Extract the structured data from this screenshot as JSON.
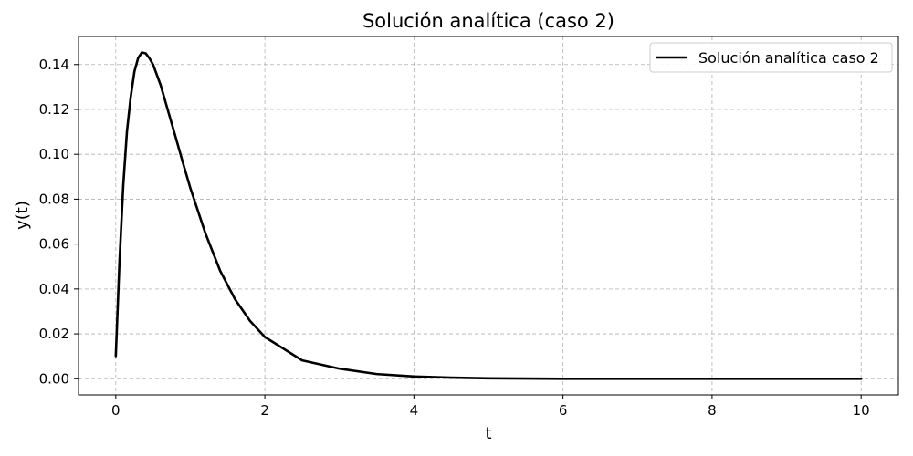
{
  "chart_data": {
    "type": "line",
    "title": "Solución analítica (caso 2)",
    "xlabel": "t",
    "ylabel": "y(t)",
    "xlim": [
      -0.5,
      10.5
    ],
    "ylim": [
      -0.0072,
      0.1525
    ],
    "xticks": [
      0,
      2,
      4,
      6,
      8,
      10
    ],
    "xtick_labels": [
      "0",
      "2",
      "4",
      "6",
      "8",
      "10"
    ],
    "yticks": [
      0.0,
      0.02,
      0.04,
      0.06,
      0.08,
      0.1,
      0.12,
      0.14
    ],
    "ytick_labels": [
      "0.00",
      "0.02",
      "0.04",
      "0.06",
      "0.08",
      "0.10",
      "0.12",
      "0.14"
    ],
    "grid": true,
    "legend_position": "top-right",
    "series": [
      {
        "name": "Solución analítica caso 2",
        "color": "#000000",
        "x": [
          0,
          0.05,
          0.1,
          0.15,
          0.2,
          0.25,
          0.3,
          0.35,
          0.4,
          0.45,
          0.5,
          0.6,
          0.7,
          0.8,
          0.9,
          1.0,
          1.2,
          1.4,
          1.6,
          1.8,
          2.0,
          2.5,
          3.0,
          3.5,
          4.0,
          4.5,
          5.0,
          6.0,
          7.0,
          8.0,
          9.0,
          10.0
        ],
        "y": [
          0.0101,
          0.0525,
          0.0861,
          0.1103,
          0.1255,
          0.1369,
          0.1429,
          0.1454,
          0.145,
          0.1429,
          0.14,
          0.131,
          0.1195,
          0.108,
          0.0963,
          0.085,
          0.065,
          0.0481,
          0.0354,
          0.0258,
          0.0186,
          0.0082,
          0.0045,
          0.0021,
          0.001,
          0.0005,
          0.0002,
          0.0,
          0.0,
          0.0,
          0.0,
          0.0
        ]
      }
    ]
  }
}
